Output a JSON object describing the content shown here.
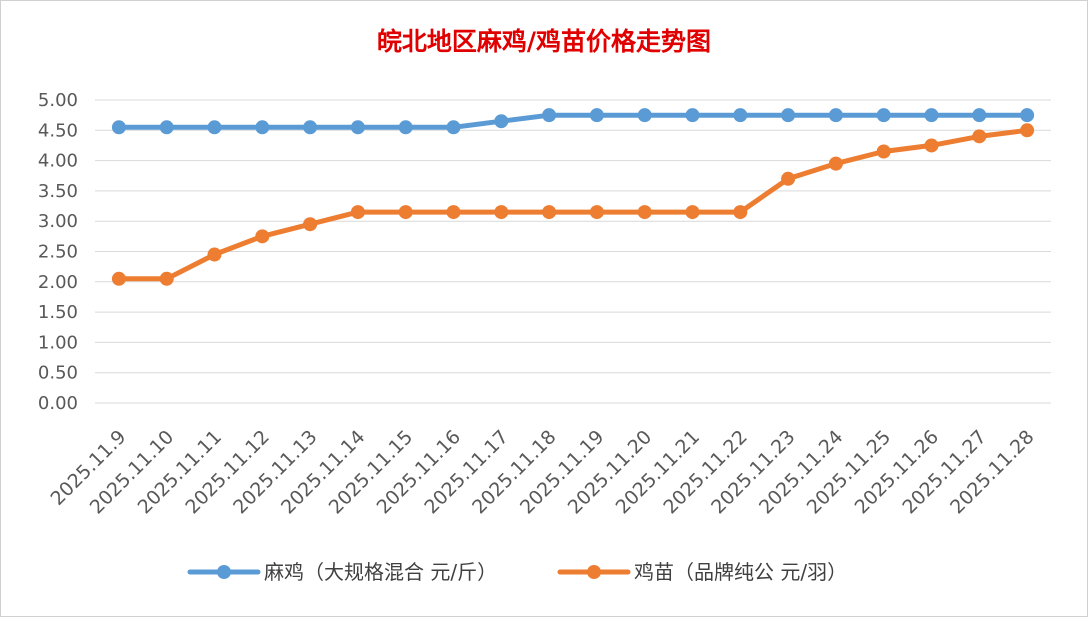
{
  "chart_data": {
    "type": "line",
    "title": "皖北地区麻鸡/鸡苗价格走势图",
    "xlabel": "",
    "ylabel": "",
    "categories": [
      "2025.11.9",
      "2025.11.10",
      "2025.11.11",
      "2025.11.12",
      "2025.11.13",
      "2025.11.14",
      "2025.11.15",
      "2025.11.16",
      "2025.11.17",
      "2025.11.18",
      "2025.11.19",
      "2025.11.20",
      "2025.11.21",
      "2025.11.22",
      "2025.11.23",
      "2025.11.24",
      "2025.11.25",
      "2025.11.26",
      "2025.11.27",
      "2025.11.28"
    ],
    "ylim": [
      0,
      5
    ],
    "yticks": [
      "0.00",
      "0.50",
      "1.00",
      "1.50",
      "2.00",
      "2.50",
      "3.00",
      "3.50",
      "4.00",
      "4.50",
      "5.00"
    ],
    "grid": true,
    "legend_position": "bottom",
    "series": [
      {
        "name": "麻鸡（大规格混合 元/斤）",
        "color": "#5b9bd5",
        "values": [
          4.55,
          4.55,
          4.55,
          4.55,
          4.55,
          4.55,
          4.55,
          4.55,
          4.65,
          4.75,
          4.75,
          4.75,
          4.75,
          4.75,
          4.75,
          4.75,
          4.75,
          4.75,
          4.75,
          4.75
        ]
      },
      {
        "name": "鸡苗（品牌纯公 元/羽）",
        "color": "#ed7d31",
        "values": [
          2.05,
          2.05,
          2.45,
          2.75,
          2.95,
          3.15,
          3.15,
          3.15,
          3.15,
          3.15,
          3.15,
          3.15,
          3.15,
          3.15,
          3.7,
          3.95,
          4.15,
          4.25,
          4.4,
          4.5
        ]
      }
    ]
  }
}
